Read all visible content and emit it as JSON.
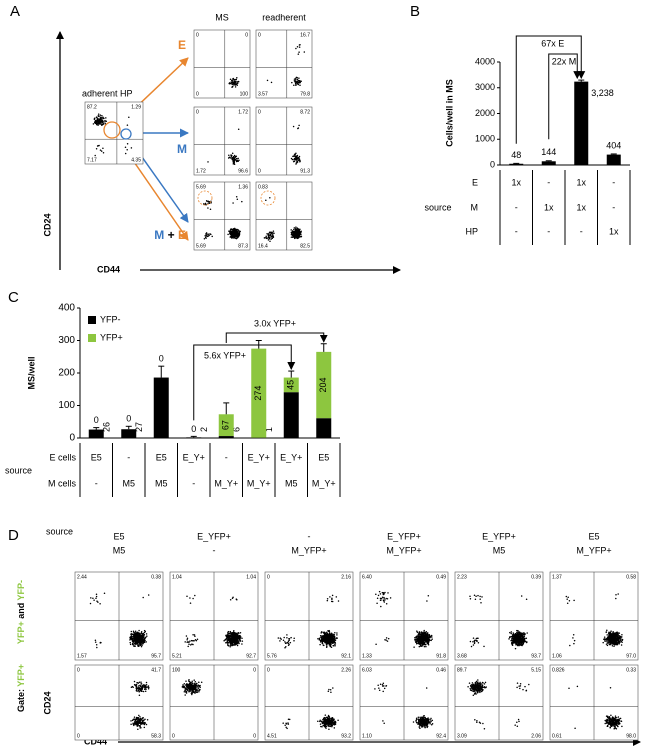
{
  "panel_labels": [
    "A",
    "B",
    "C",
    "D"
  ],
  "panel_a": {
    "y_axis": "CD24",
    "x_axis": "CD44",
    "hp_plot": {
      "title": "adherent HP",
      "quadrants": [
        "87.2",
        "1.29",
        "7.17",
        "4.35"
      ]
    },
    "columns": [
      "MS",
      "readherent"
    ],
    "rows": [
      {
        "label": [
          {
            "text": "E",
            "color": "#e8862f"
          }
        ],
        "plots": [
          [
            "0",
            "0",
            "0",
            "100"
          ],
          [
            "0",
            "16.7",
            "3.57",
            "79.8"
          ]
        ]
      },
      {
        "label": [
          {
            "text": "M",
            "color": "#3a78c2"
          }
        ],
        "plots": [
          [
            "0",
            "1.72",
            "1.72",
            "96.6"
          ],
          [
            "0",
            "8.72",
            "0",
            "91.3"
          ]
        ]
      },
      {
        "label": [
          {
            "text": "M",
            "color": "#3a78c2"
          },
          {
            "text": " + ",
            "color": "#000000"
          },
          {
            "text": "E",
            "color": "#e8862f"
          }
        ],
        "plots": [
          [
            "5.69",
            "1.36",
            "5.69",
            "87.3"
          ],
          [
            "0.83",
            "",
            "16.4",
            "82.5"
          ]
        ]
      }
    ]
  },
  "chart_data": [
    {
      "type": "bar",
      "y_label": "Cells/well in MS",
      "ylim": [
        0,
        4000
      ],
      "yticks": [
        0,
        1000,
        2000,
        3000,
        4000
      ],
      "values": [
        48,
        144,
        3238,
        404
      ],
      "value_labels": [
        "48",
        "144",
        "3,238",
        "404"
      ],
      "errors": [
        15,
        20,
        60,
        25
      ],
      "color": "#000000",
      "annotations": [
        "67x E",
        "22x M"
      ],
      "table": {
        "header": "source",
        "rows": [
          {
            "name": "E",
            "color": "#e8862f",
            "cells": [
              "1x",
              "-",
              "1x",
              "-"
            ]
          },
          {
            "name": "M",
            "color": "#3a78c2",
            "cells": [
              "-",
              "1x",
              "1x",
              "-"
            ]
          },
          {
            "name": "HP",
            "color": "#000000",
            "cells": [
              "-",
              "-",
              "-",
              "1x"
            ]
          }
        ]
      }
    },
    {
      "type": "stacked_bar",
      "y_label": "MS/well",
      "ylim": [
        0,
        400
      ],
      "yticks": [
        0,
        100,
        200,
        300,
        400
      ],
      "series": [
        {
          "name": "YFP-",
          "color": "#000000",
          "values": [
            26,
            27,
            186,
            2,
            6,
            1,
            141,
            61
          ]
        },
        {
          "name": "YFP+",
          "color": "#8dc63f",
          "values": [
            0,
            0,
            0,
            0,
            67,
            274,
            45,
            204
          ]
        }
      ],
      "errors": [
        6,
        9,
        35,
        3,
        35,
        25,
        20,
        25
      ],
      "annotations": [
        {
          "text": "5.6x YFP+",
          "color": "#8dc63f"
        },
        {
          "text": "3.0x YFP+",
          "color": "#8dc63f"
        }
      ],
      "table": {
        "header": "source",
        "rows": [
          {
            "name": "E cells",
            "color": "#e8862f",
            "cells": [
              "E5",
              "-",
              "E5",
              "E_Y+",
              "-",
              "E_Y+",
              "E_Y+",
              "E5"
            ]
          },
          {
            "name": "M cells",
            "color": "#3a78c2",
            "cells": [
              "-",
              "M5",
              "M5",
              "-",
              "M_Y+",
              "M_Y+",
              "M5",
              "M_Y+"
            ]
          }
        ]
      }
    }
  ],
  "panel_d": {
    "header": "source",
    "columns": [
      [
        {
          "text": "E5",
          "color": "#e8862f"
        },
        {
          "text": "M5",
          "color": "#3a78c2"
        }
      ],
      [
        {
          "text": "E_YFP+",
          "color": "#e8862f"
        },
        {
          "text": "-",
          "color": "#000000"
        }
      ],
      [
        {
          "text": "-",
          "color": "#000000"
        },
        {
          "text": "M_YFP+",
          "color": "#3a78c2"
        }
      ],
      [
        {
          "text": "E_YFP+",
          "color": "#e8862f"
        },
        {
          "text": "M_YFP+",
          "color": "#3a78c2"
        }
      ],
      [
        {
          "text": "E_YFP+",
          "color": "#e8862f"
        },
        {
          "text": "M5",
          "color": "#3a78c2"
        }
      ],
      [
        {
          "text": "E5",
          "color": "#e8862f"
        },
        {
          "text": "M_YFP+",
          "color": "#3a78c2"
        }
      ]
    ],
    "row_labels": [
      [
        {
          "text": "YFP+",
          "color": "#8dc63f"
        },
        {
          "text": " and ",
          "color": "#000000"
        },
        {
          "text": "YFP-",
          "color": "#8dc63f"
        }
      ],
      [
        {
          "text": "Gate: ",
          "color": "#000000"
        },
        {
          "text": "YFP+",
          "color": "#8dc63f"
        }
      ]
    ],
    "y_axis": "CD24",
    "x_axis": "CD44",
    "plots": [
      [
        [
          "2.44",
          "0.38",
          "1.57",
          "95.7"
        ],
        [
          "1.04",
          "1.04",
          "5.21",
          "92.7"
        ],
        [
          "0",
          "2.16",
          "5.76",
          "92.1"
        ],
        [
          "6.40",
          "0.49",
          "1.33",
          "91.8"
        ],
        [
          "2.23",
          "0.39",
          "3.68",
          "93.7"
        ],
        [
          "1.37",
          "0.58",
          "1.06",
          "97.0"
        ]
      ],
      [
        [
          "0",
          "41.7",
          "0",
          "58.3"
        ],
        [
          "100",
          "0",
          "0",
          "0"
        ],
        [
          "0",
          "2.26",
          "4.51",
          "93.2"
        ],
        [
          "6.03",
          "0.46",
          "1.10",
          "92.4"
        ],
        [
          "89.7",
          "5.15",
          "3.09",
          "2.06"
        ],
        [
          "0.826",
          "0.33",
          "0.61",
          "98.0"
        ]
      ]
    ]
  }
}
